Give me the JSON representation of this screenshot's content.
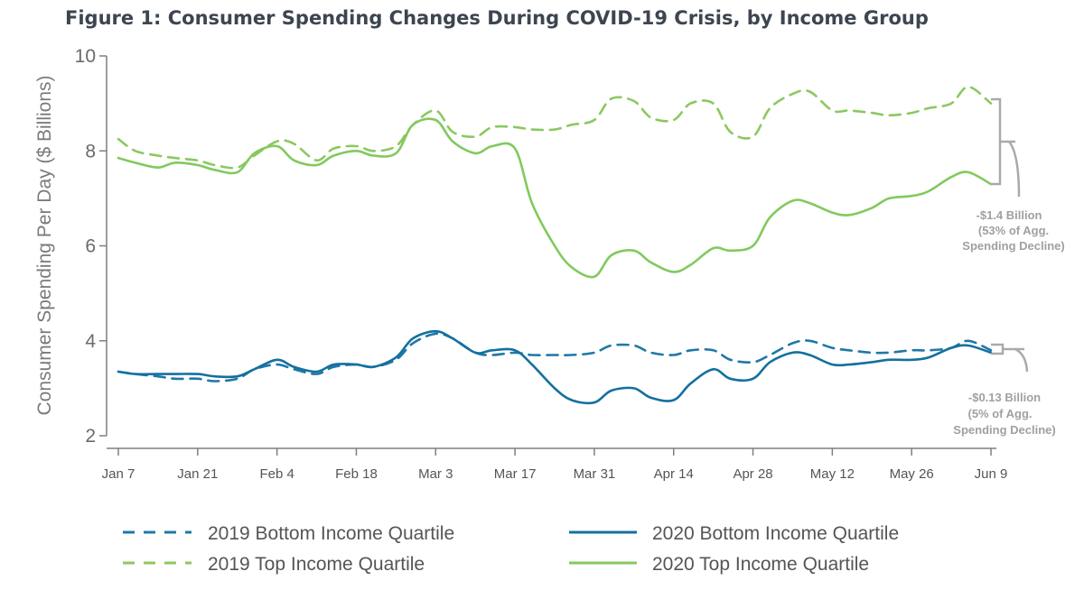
{
  "chart_data": {
    "type": "line",
    "title": "Figure 1: Consumer Spending Changes During COVID-19 Crisis, by Income Group",
    "xlabel": "",
    "ylabel": "Consumer Spending Per Day ($ Billions)",
    "ylim": [
      2,
      10
    ],
    "yticks": [
      2,
      4,
      6,
      8,
      10
    ],
    "xlim": [
      "2020-01-07",
      "2020-06-09"
    ],
    "xticks": [
      "Jan 7",
      "Jan 21",
      "Feb 4",
      "Feb 18",
      "Mar 3",
      "Mar 17",
      "Mar 31",
      "Apr 14",
      "Apr 28",
      "May 12",
      "May 26",
      "Jun 9"
    ],
    "x": [
      "2020-01-07",
      "2020-01-10",
      "2020-01-14",
      "2020-01-17",
      "2020-01-21",
      "2020-01-24",
      "2020-01-28",
      "2020-01-31",
      "2020-02-04",
      "2020-02-07",
      "2020-02-11",
      "2020-02-14",
      "2020-02-18",
      "2020-02-21",
      "2020-02-25",
      "2020-02-28",
      "2020-03-03",
      "2020-03-06",
      "2020-03-10",
      "2020-03-13",
      "2020-03-17",
      "2020-03-20",
      "2020-03-24",
      "2020-03-27",
      "2020-03-31",
      "2020-04-03",
      "2020-04-07",
      "2020-04-10",
      "2020-04-14",
      "2020-04-17",
      "2020-04-21",
      "2020-04-24",
      "2020-04-28",
      "2020-05-01",
      "2020-05-05",
      "2020-05-08",
      "2020-05-12",
      "2020-05-15",
      "2020-05-19",
      "2020-05-22",
      "2020-05-26",
      "2020-05-29",
      "2020-06-02",
      "2020-06-05",
      "2020-06-09"
    ],
    "series": [
      {
        "name": "2019 Bottom Income Quartile",
        "color": "#1f78a8",
        "dash": true,
        "values": [
          3.35,
          3.3,
          3.25,
          3.2,
          3.2,
          3.15,
          3.2,
          3.4,
          3.5,
          3.4,
          3.3,
          3.45,
          3.5,
          3.45,
          3.6,
          3.95,
          4.15,
          4.05,
          3.75,
          3.7,
          3.75,
          3.7,
          3.7,
          3.7,
          3.75,
          3.9,
          3.9,
          3.75,
          3.7,
          3.8,
          3.8,
          3.6,
          3.55,
          3.7,
          3.95,
          4.0,
          3.85,
          3.8,
          3.75,
          3.75,
          3.8,
          3.8,
          3.85,
          4.0,
          3.8
        ]
      },
      {
        "name": "2019 Top Income Quartile",
        "color": "#8cc860",
        "dash": true,
        "values": [
          8.25,
          8.0,
          7.9,
          7.85,
          7.8,
          7.7,
          7.65,
          7.9,
          8.2,
          8.15,
          7.8,
          8.05,
          8.1,
          8.0,
          8.1,
          8.55,
          8.85,
          8.4,
          8.3,
          8.5,
          8.5,
          8.45,
          8.45,
          8.55,
          8.65,
          9.1,
          9.05,
          8.7,
          8.65,
          9.0,
          9.0,
          8.4,
          8.3,
          8.9,
          9.2,
          9.25,
          8.85,
          8.85,
          8.8,
          8.75,
          8.8,
          8.9,
          9.0,
          9.35,
          9.0
        ]
      },
      {
        "name": "2020 Bottom Income Quartile",
        "color": "#14709e",
        "dash": false,
        "values": [
          3.35,
          3.3,
          3.3,
          3.3,
          3.3,
          3.25,
          3.25,
          3.4,
          3.6,
          3.45,
          3.35,
          3.5,
          3.5,
          3.45,
          3.65,
          4.05,
          4.2,
          4.05,
          3.75,
          3.8,
          3.8,
          3.5,
          3.0,
          2.75,
          2.7,
          2.95,
          3.0,
          2.8,
          2.75,
          3.1,
          3.4,
          3.2,
          3.2,
          3.55,
          3.75,
          3.7,
          3.5,
          3.5,
          3.55,
          3.6,
          3.6,
          3.65,
          3.85,
          3.9,
          3.75
        ]
      },
      {
        "name": "2020 Top Income Quartile",
        "color": "#82c95e",
        "dash": false,
        "values": [
          7.85,
          7.75,
          7.65,
          7.75,
          7.7,
          7.6,
          7.55,
          7.95,
          8.1,
          7.8,
          7.7,
          7.9,
          8.0,
          7.9,
          7.95,
          8.55,
          8.65,
          8.2,
          7.95,
          8.1,
          8.05,
          6.9,
          6.0,
          5.55,
          5.35,
          5.8,
          5.9,
          5.65,
          5.45,
          5.6,
          5.95,
          5.9,
          6.0,
          6.6,
          6.95,
          6.9,
          6.7,
          6.65,
          6.8,
          7.0,
          7.05,
          7.15,
          7.45,
          7.55,
          7.3
        ]
      }
    ],
    "annotations": [
      {
        "lines": [
          "-$1.4 Billion",
          "(53%  of Agg.",
          "Spending Decline)"
        ]
      },
      {
        "lines": [
          "-$0.13 Billion",
          "(5%  of Agg.",
          "Spending Decline)"
        ]
      }
    ],
    "legend_position": "bottom",
    "grid": false
  }
}
